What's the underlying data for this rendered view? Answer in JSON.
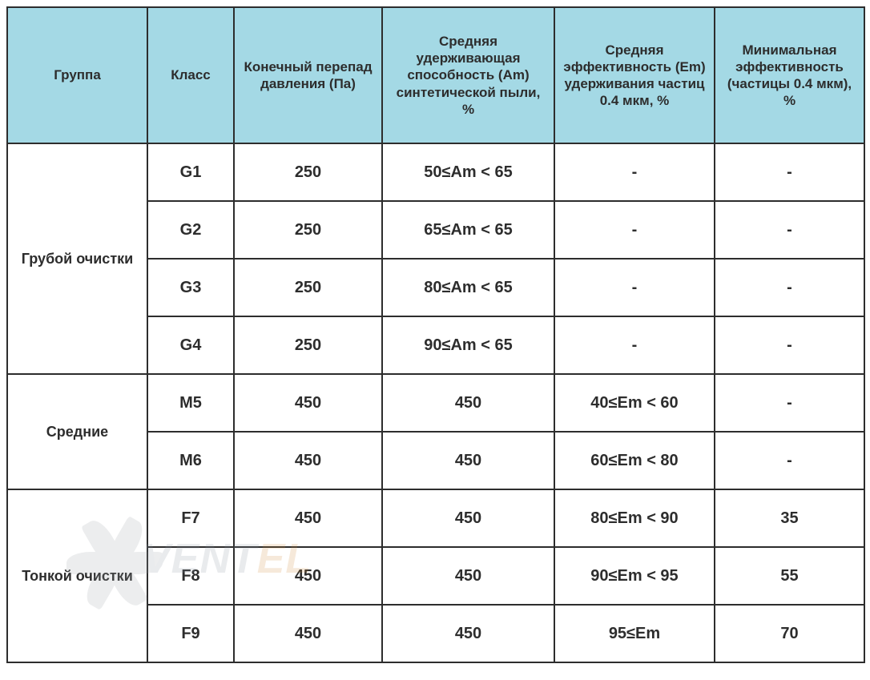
{
  "table": {
    "header_bg": "#a4d9e5",
    "border_color": "#2d2d2d",
    "text_color": "#2d2d2d",
    "columns": [
      "Группа",
      "Класс",
      "Конечный перепад давления (Па)",
      "Средняя удерживающая способность (Am) синтетической пыли, %",
      "Средняя эффективность (Em) удерживания частиц 0.4 мкм, %",
      "Минимальная эффективность (частицы 0.4 мкм), %"
    ],
    "groups": [
      {
        "name": "Грубой очистки",
        "rows": [
          {
            "class": "G1",
            "pressure": "250",
            "am": "50≤Am < 65",
            "em": "-",
            "min": "-"
          },
          {
            "class": "G2",
            "pressure": "250",
            "am": "65≤Am < 65",
            "em": "-",
            "min": "-"
          },
          {
            "class": "G3",
            "pressure": "250",
            "am": "80≤Am < 65",
            "em": "-",
            "min": "-"
          },
          {
            "class": "G4",
            "pressure": "250",
            "am": "90≤Am < 65",
            "em": "-",
            "min": "-"
          }
        ]
      },
      {
        "name": "Средние",
        "rows": [
          {
            "class": "M5",
            "pressure": "450",
            "am": "450",
            "em": "40≤Em < 60",
            "min": "-"
          },
          {
            "class": "M6",
            "pressure": "450",
            "am": "450",
            "em": "60≤Em < 80",
            "min": "-"
          }
        ]
      },
      {
        "name": "Тонкой очистки",
        "rows": [
          {
            "class": "F7",
            "pressure": "450",
            "am": "450",
            "em": "80≤Em < 90",
            "min": "35"
          },
          {
            "class": "F8",
            "pressure": "450",
            "am": "450",
            "em": "90≤Em < 95",
            "min": "55"
          },
          {
            "class": "F9",
            "pressure": "450",
            "am": "450",
            "em": "95≤Em",
            "min": "70"
          }
        ]
      }
    ]
  },
  "watermark": {
    "text_left": "VENT",
    "text_right": "EL",
    "color_main": "#8893a0",
    "color_accent": "#d08a3a"
  }
}
